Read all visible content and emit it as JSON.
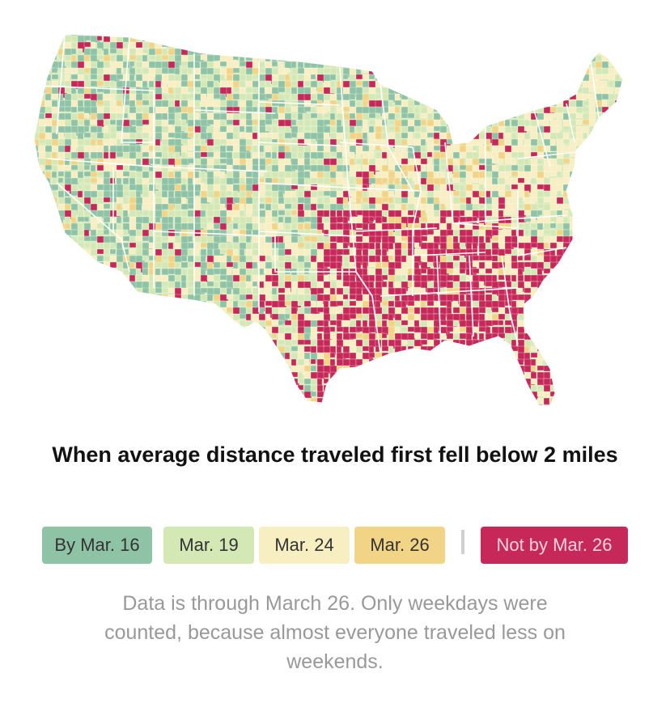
{
  "title": "When average distance traveled first fell below 2 miles",
  "legend": [
    {
      "label": "By Mar. 16",
      "color": "#8fc3a6",
      "text_color": "#333333"
    },
    {
      "label": "Mar. 19",
      "color": "#d3e8b5",
      "text_color": "#333333"
    },
    {
      "label": "Mar. 24",
      "color": "#f7eec1",
      "text_color": "#333333"
    },
    {
      "label": "Mar. 26",
      "color": "#f1d486",
      "text_color": "#333333"
    },
    {
      "label": "Not by Mar. 26",
      "color": "#c7285a",
      "text_color": "#f6d4de"
    }
  ],
  "note": "Data is through March 26. Only weekdays were counted, because almost everyone traveled less on weekends.",
  "map": {
    "region": "Contiguous United States, by county",
    "colors": {
      "by_mar16": "#8fc3a6",
      "mar19": "#d3e8b5",
      "mar24": "#f7eec1",
      "mar26": "#f1d486",
      "not_by_mar26": "#c7285a",
      "state_border": "#ffffff"
    }
  }
}
